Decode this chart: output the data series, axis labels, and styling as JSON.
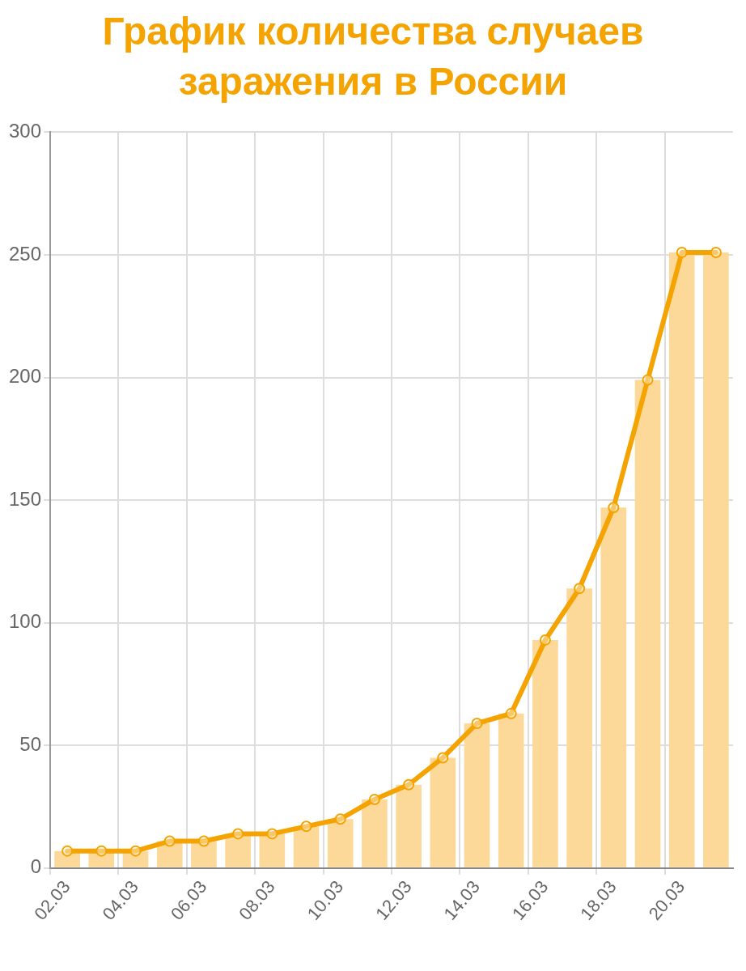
{
  "chart_data": {
    "type": "bar",
    "title": "График количества случаев заражения в России",
    "categories": [
      "02.03",
      null,
      "04.03",
      null,
      "06.03",
      null,
      "08.03",
      null,
      "10.03",
      null,
      "12.03",
      null,
      "14.03",
      null,
      "16.03",
      null,
      "18.03",
      null,
      "20.03",
      null
    ],
    "series": [
      {
        "color": "#fdd999",
        "values": [
          7,
          7,
          7,
          11,
          11,
          14,
          14,
          17,
          20,
          28,
          34,
          45,
          59,
          63,
          93,
          114,
          147,
          199,
          251,
          251
        ]
      },
      {
        "type": "line",
        "color": "#f5a300",
        "values": [
          7,
          7,
          7,
          11,
          11,
          14,
          14,
          17,
          20,
          28,
          34,
          45,
          59,
          63,
          93,
          114,
          147,
          199,
          251,
          251
        ]
      }
    ],
    "ylim": [
      0,
      300
    ],
    "yticks": [
      0,
      50,
      100,
      150,
      200,
      250,
      300
    ],
    "grid": true,
    "marker": "circle",
    "legend": false
  }
}
